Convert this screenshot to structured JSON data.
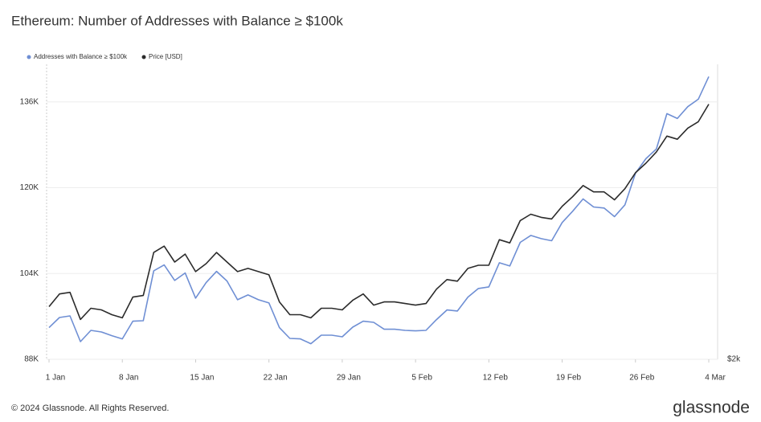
{
  "chart_data": {
    "type": "line",
    "title": "Ethereum: Number of Addresses with Balance ≥ $100k",
    "footer": "© 2024 Glassnode. All Rights Reserved.",
    "brand": "glassnode",
    "categories": [
      "1 Jan",
      null,
      null,
      null,
      null,
      null,
      null,
      "8 Jan",
      null,
      null,
      null,
      null,
      null,
      null,
      "15 Jan",
      null,
      null,
      null,
      null,
      null,
      null,
      "22 Jan",
      null,
      null,
      null,
      null,
      null,
      null,
      "29 Jan",
      null,
      null,
      null,
      null,
      null,
      null,
      "5 Feb",
      null,
      null,
      null,
      null,
      null,
      null,
      "12 Feb",
      null,
      null,
      null,
      null,
      null,
      null,
      "19 Feb",
      null,
      null,
      null,
      null,
      null,
      null,
      "26 Feb",
      null,
      null,
      null,
      null,
      null,
      null,
      "4 Mar"
    ],
    "series": [
      {
        "name": "Addresses with Balance ≥ $100k",
        "color": "#6f8fd4",
        "values": [
          93900,
          95800,
          96100,
          91300,
          93400,
          93100,
          92400,
          91800,
          95100,
          95200,
          104500,
          105600,
          102700,
          104100,
          99400,
          102300,
          104400,
          102600,
          99100,
          100000,
          99100,
          98500,
          93900,
          91900,
          91800,
          90900,
          92500,
          92500,
          92200,
          94000,
          95100,
          94900,
          93600,
          93600,
          93400,
          93300,
          93400,
          95400,
          97200,
          97000,
          99600,
          101200,
          101500,
          106000,
          105400,
          109800,
          111100,
          110500,
          110100,
          113500,
          115600,
          117900,
          116400,
          116200,
          114600,
          116800,
          122700,
          125400,
          127200,
          133800,
          132900,
          135100,
          136500,
          140700
        ]
      },
      {
        "name": "Price [USD]",
        "color": "#2b2b2b",
        "axis": "y2",
        "values": [
          2330,
          2410,
          2420,
          2250,
          2320,
          2310,
          2280,
          2260,
          2390,
          2400,
          2670,
          2710,
          2610,
          2660,
          2550,
          2600,
          2670,
          2610,
          2550,
          2570,
          2550,
          2530,
          2360,
          2280,
          2280,
          2260,
          2320,
          2320,
          2310,
          2370,
          2410,
          2340,
          2360,
          2360,
          2350,
          2340,
          2350,
          2440,
          2500,
          2490,
          2570,
          2590,
          2590,
          2750,
          2730,
          2870,
          2910,
          2890,
          2880,
          2960,
          3020,
          3090,
          3050,
          3050,
          3000,
          3070,
          3170,
          3230,
          3300,
          3400,
          3380,
          3450,
          3490,
          3600
        ]
      }
    ],
    "ylim": [
      88000,
      143000
    ],
    "yticks": [
      {
        "value": 88000,
        "label": "88K"
      },
      {
        "value": 104000,
        "label": "104K"
      },
      {
        "value": 120000,
        "label": "120K"
      },
      {
        "value": 136000,
        "label": "136K"
      }
    ],
    "y2lim": [
      2000,
      3850
    ],
    "y2ticks": [
      {
        "value": 2000,
        "label": "$2k"
      }
    ],
    "grid": true
  }
}
